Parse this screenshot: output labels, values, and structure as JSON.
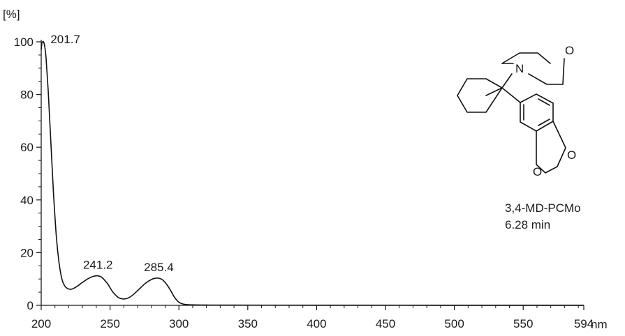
{
  "chart_data": {
    "type": "line",
    "title": "",
    "xlabel": "",
    "ylabel": "",
    "x_unit": "nm",
    "y_unit": "[%]",
    "xlim": [
      200,
      594
    ],
    "ylim": [
      0,
      100
    ],
    "x_ticks": [
      200,
      250,
      300,
      350,
      400,
      450,
      500,
      550,
      594
    ],
    "x_tick_labels": [
      "200",
      "250",
      "300",
      "350",
      "400",
      "450",
      "500",
      "550",
      "594"
    ],
    "y_ticks": [
      0,
      20,
      40,
      60,
      80,
      100
    ],
    "y_tick_labels": [
      "0",
      "20",
      "40",
      "60",
      "80",
      "100"
    ],
    "grid": false,
    "series": [
      {
        "x": [
          200,
          200.5,
          201,
          201.7,
          202.5,
          203.5,
          205,
          207,
          209,
          211,
          213,
          215,
          217,
          219,
          221,
          223,
          226,
          230,
          234,
          238,
          241.2,
          244,
          248,
          252,
          256,
          260,
          264,
          268,
          272,
          276,
          280,
          283,
          285.4,
          288,
          291,
          294,
          297,
          300,
          303,
          307,
          312,
          320,
          340,
          400,
          500,
          594
        ],
        "y": [
          97,
          99.5,
          100,
          100,
          98.5,
          94,
          82,
          62,
          42,
          26,
          16,
          10,
          7.4,
          6.4,
          6.1,
          6.3,
          7.2,
          8.7,
          10.1,
          11,
          11.2,
          10.6,
          8.3,
          5.1,
          3,
          2.4,
          3,
          4.6,
          6.6,
          8.5,
          9.8,
          10.3,
          10.3,
          9.7,
          8,
          5.6,
          2.9,
          1.2,
          0.5,
          0.25,
          0.15,
          0.1,
          0.08,
          0.05,
          0.03,
          0.03
        ]
      }
    ],
    "annotations": [
      {
        "text": "201.7",
        "x": 201.7,
        "y": 100
      },
      {
        "text": "241.2",
        "x": 241.2,
        "y": 11.2
      },
      {
        "text": "285.4",
        "x": 285.4,
        "y": 10.3
      }
    ]
  },
  "compound": {
    "name": "3,4-MD-PCMo",
    "retention_time": "6.28 min",
    "atoms": {
      "nitrogen": "N",
      "oxygen_morpholine": "O",
      "oxygen_dioxole_1": "O",
      "oxygen_dioxole_2": "O"
    }
  }
}
